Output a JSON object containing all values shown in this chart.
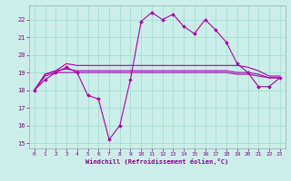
{
  "xlabel": "Windchill (Refroidissement éolien,°C)",
  "bg_color": "#cceee8",
  "grid_color": "#99ddcc",
  "line_color": "#aa00aa",
  "xlim": [
    -0.5,
    23.5
  ],
  "ylim": [
    14.7,
    22.8
  ],
  "yticks": [
    15,
    16,
    17,
    18,
    19,
    20,
    21,
    22
  ],
  "xticks": [
    0,
    1,
    2,
    3,
    4,
    5,
    6,
    7,
    8,
    9,
    10,
    11,
    12,
    13,
    14,
    15,
    16,
    17,
    18,
    19,
    20,
    21,
    22,
    23
  ],
  "series": {
    "line1": [
      18.0,
      18.6,
      19.0,
      19.3,
      19.0,
      17.7,
      17.5,
      15.2,
      16.0,
      18.6,
      21.9,
      22.4,
      22.0,
      22.3,
      21.6,
      21.2,
      22.0,
      21.4,
      20.7,
      19.5,
      19.0,
      18.2,
      18.2,
      18.7
    ],
    "line2": [
      18.0,
      18.9,
      19.1,
      19.5,
      19.4,
      19.4,
      19.4,
      19.4,
      19.4,
      19.4,
      19.4,
      19.4,
      19.4,
      19.4,
      19.4,
      19.4,
      19.4,
      19.4,
      19.4,
      19.4,
      19.3,
      19.1,
      18.8,
      18.8
    ],
    "line3": [
      18.0,
      18.9,
      19.1,
      19.2,
      19.1,
      19.1,
      19.1,
      19.1,
      19.1,
      19.1,
      19.1,
      19.1,
      19.1,
      19.1,
      19.1,
      19.1,
      19.1,
      19.1,
      19.1,
      19.0,
      19.0,
      18.9,
      18.7,
      18.7
    ],
    "line4": [
      18.0,
      18.8,
      19.0,
      19.0,
      19.0,
      19.0,
      19.0,
      19.0,
      19.0,
      19.0,
      19.0,
      19.0,
      19.0,
      19.0,
      19.0,
      19.0,
      19.0,
      19.0,
      19.0,
      18.9,
      18.9,
      18.8,
      18.7,
      18.7
    ]
  },
  "marker_series": [
    0,
    1,
    2,
    3,
    4,
    5,
    6,
    7,
    8,
    9,
    10,
    11,
    12,
    13,
    14,
    15,
    16,
    17,
    18,
    19,
    20,
    21,
    22,
    23
  ]
}
